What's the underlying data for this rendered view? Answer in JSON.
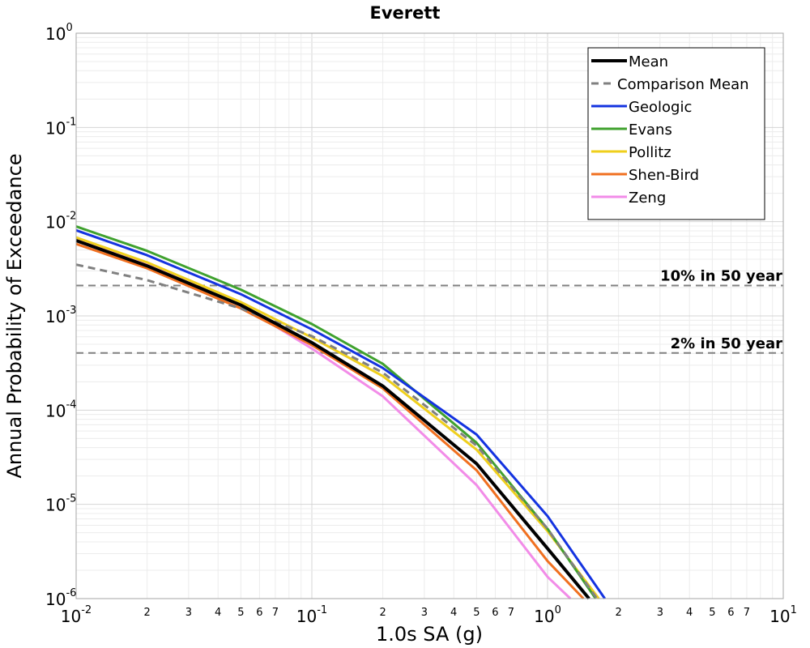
{
  "chart_data": {
    "type": "line",
    "title": "Everett",
    "xlabel": "1.0s SA (g)",
    "ylabel": "Annual Probability of Exceedance",
    "xscale": "log",
    "yscale": "log",
    "xlim": [
      0.01,
      10
    ],
    "ylim": [
      1e-06,
      1
    ],
    "grid": true,
    "legend_position": "top-right",
    "x_major_ticks": [
      {
        "base": "10",
        "exp": "-2"
      },
      {
        "base": "10",
        "exp": "-1"
      },
      {
        "base": "10",
        "exp": "0"
      },
      {
        "base": "10",
        "exp": "1"
      }
    ],
    "y_major_ticks": [
      {
        "base": "10",
        "exp": "0"
      },
      {
        "base": "10",
        "exp": "-1"
      },
      {
        "base": "10",
        "exp": "-2"
      },
      {
        "base": "10",
        "exp": "-3"
      },
      {
        "base": "10",
        "exp": "-4"
      },
      {
        "base": "10",
        "exp": "-5"
      },
      {
        "base": "10",
        "exp": "-6"
      }
    ],
    "x_minor_tick_labels": [
      "2",
      "3",
      "4",
      "5",
      "6",
      "7"
    ],
    "reference_lines": [
      {
        "label": "10% in 50 year",
        "y": 0.0021
      },
      {
        "label": "2% in 50 year",
        "y": 0.000404
      }
    ],
    "series": [
      {
        "name": "Mean",
        "color": "#000000",
        "style": "solid-thick",
        "x": [
          0.01,
          0.02,
          0.05,
          0.1,
          0.2,
          0.5,
          1.0,
          1.5
        ],
        "y": [
          0.0063,
          0.0034,
          0.0013,
          0.00052,
          0.00018,
          2.7e-05,
          3.4e-06,
          1e-06
        ]
      },
      {
        "name": "Comparison Mean",
        "color": "#808080",
        "style": "dashed",
        "x": [
          0.01,
          0.02,
          0.05,
          0.1,
          0.2,
          0.5,
          1.0,
          1.62
        ],
        "y": [
          0.0035,
          0.0024,
          0.0012,
          0.00061,
          0.00025,
          4.2e-05,
          5.5e-06,
          1e-06
        ]
      },
      {
        "name": "Geologic",
        "color": "#1433e0",
        "style": "solid",
        "x": [
          0.01,
          0.02,
          0.05,
          0.1,
          0.2,
          0.5,
          1.0,
          1.75
        ],
        "y": [
          0.0081,
          0.0044,
          0.0017,
          0.00072,
          0.00028,
          5.5e-05,
          7.5e-06,
          1e-06
        ]
      },
      {
        "name": "Evans",
        "color": "#3fa12e",
        "style": "solid",
        "x": [
          0.01,
          0.02,
          0.05,
          0.1,
          0.2,
          0.5,
          1.0,
          1.6
        ],
        "y": [
          0.0089,
          0.0049,
          0.0019,
          0.00082,
          0.00031,
          4.5e-05,
          5.5e-06,
          1e-06
        ]
      },
      {
        "name": "Pollitz",
        "color": "#efcf1c",
        "style": "solid",
        "x": [
          0.01,
          0.02,
          0.05,
          0.1,
          0.2,
          0.5,
          1.0,
          1.65
        ],
        "y": [
          0.0068,
          0.0037,
          0.0014,
          0.00059,
          0.00023,
          3.8e-05,
          5.2e-06,
          1e-06
        ]
      },
      {
        "name": "Shen-Bird",
        "color": "#f07020",
        "style": "solid",
        "x": [
          0.01,
          0.02,
          0.05,
          0.1,
          0.2,
          0.5,
          1.0,
          1.42
        ],
        "y": [
          0.0058,
          0.0032,
          0.0012,
          0.00049,
          0.00017,
          2.3e-05,
          2.5e-06,
          1e-06
        ]
      },
      {
        "name": "Zeng",
        "color": "#f28ce8",
        "style": "solid",
        "x": [
          0.01,
          0.02,
          0.05,
          0.1,
          0.2,
          0.5,
          1.0,
          1.25
        ],
        "y": [
          0.0066,
          0.0035,
          0.0013,
          0.00045,
          0.00014,
          1.6e-05,
          1.7e-06,
          1e-06
        ]
      }
    ]
  }
}
